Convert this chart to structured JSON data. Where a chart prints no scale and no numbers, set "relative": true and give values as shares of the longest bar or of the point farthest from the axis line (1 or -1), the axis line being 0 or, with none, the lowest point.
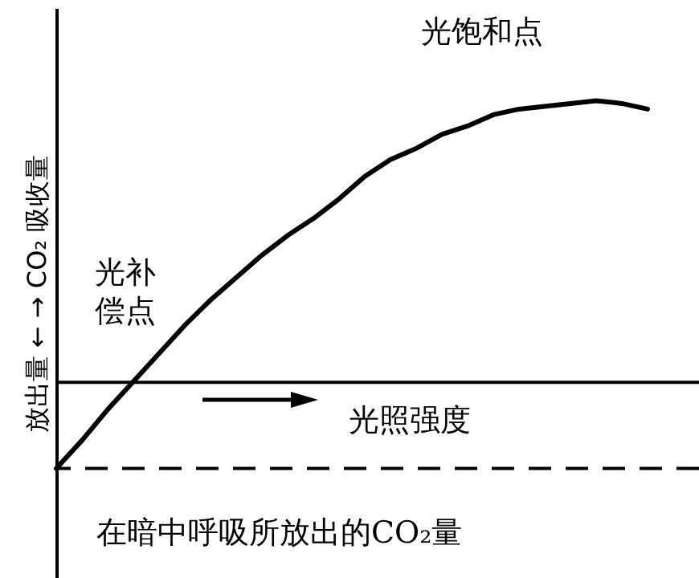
{
  "chart_data": {
    "type": "line",
    "relative": true,
    "xlabel": "光照强度",
    "ylabel": "放出量 ←    → CO₂ 吸收量",
    "categories": [
      null,
      null,
      null,
      null,
      null,
      null,
      null,
      null,
      null,
      null,
      null,
      null,
      null,
      null,
      null,
      null,
      null,
      null,
      null,
      null,
      null,
      null,
      null,
      null
    ],
    "series": [
      {
        "color": "#000000",
        "values": [
          -0.31,
          -0.21,
          -0.1,
          0,
          0.1,
          0.2,
          0.29,
          0.37,
          0.45,
          0.52,
          0.58,
          0.65,
          0.73,
          0.79,
          0.83,
          0.88,
          0.91,
          0.95,
          0.97,
          0.98,
          0.99,
          1,
          0.99,
          0.97
        ]
      }
    ],
    "ref_lines": [
      {
        "axis": "y",
        "value": -0.31,
        "label": "在暗中呼吸所放出的CO₂量",
        "color": "#000000",
        "line_style": "dashed"
      }
    ],
    "annotations": [
      "光饱和点",
      "光补偿点"
    ],
    "grid": false,
    "marker": "none"
  }
}
